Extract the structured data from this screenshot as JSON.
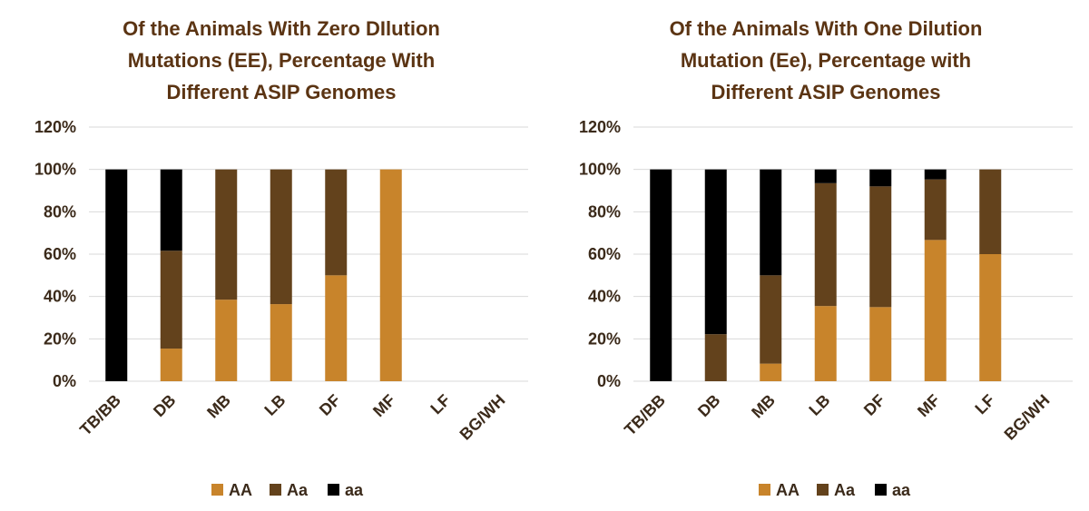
{
  "colors": {
    "AA": "#c8842b",
    "Aa": "#63421c",
    "aa": "#000000",
    "grid": "#d9d9d9",
    "title": "#5b3413",
    "text": "#3b2a1a"
  },
  "chart_data": [
    {
      "type": "bar",
      "stacked": true,
      "title_lines": [
        "Of the Animals With Zero DIlution",
        "Mutations (EE), Percentage With",
        "Different ASIP Genomes"
      ],
      "xlabel": "",
      "ylabel": "",
      "ylim": [
        0,
        120
      ],
      "yticks": [
        "0%",
        "20%",
        "40%",
        "60%",
        "80%",
        "100%",
        "120%"
      ],
      "grid": true,
      "legend_position": "bottom",
      "categories": [
        "TB/BB",
        "DB",
        "MB",
        "LB",
        "DF",
        "MF",
        "LF",
        "BG/WH"
      ],
      "series": [
        {
          "name": "AA",
          "values": [
            0,
            15.4,
            38.5,
            36.4,
            50,
            100,
            0,
            0
          ]
        },
        {
          "name": "Aa",
          "values": [
            0,
            46.2,
            61.5,
            63.6,
            50,
            0,
            0,
            0
          ]
        },
        {
          "name": "aa",
          "values": [
            100,
            38.4,
            0,
            0,
            0,
            0,
            0,
            0
          ]
        }
      ]
    },
    {
      "type": "bar",
      "stacked": true,
      "title_lines": [
        "Of the Animals With One Dilution",
        "Mutation (Ee), Percentage with",
        "Different ASIP Genomes"
      ],
      "xlabel": "",
      "ylabel": "",
      "ylim": [
        0,
        120
      ],
      "yticks": [
        "0%",
        "20%",
        "40%",
        "60%",
        "80%",
        "100%",
        "120%"
      ],
      "grid": true,
      "legend_position": "bottom",
      "categories": [
        "TB/BB",
        "DB",
        "MB",
        "LB",
        "DF",
        "MF",
        "LF",
        "BG/WH"
      ],
      "series": [
        {
          "name": "AA",
          "values": [
            0,
            0,
            8.3,
            35.5,
            35,
            66.7,
            60,
            0
          ]
        },
        {
          "name": "Aa",
          "values": [
            0,
            22.2,
            41.7,
            58,
            57,
            28.6,
            40,
            0
          ]
        },
        {
          "name": "aa",
          "values": [
            100,
            77.8,
            50,
            6.5,
            8,
            4.7,
            0,
            0
          ]
        }
      ]
    }
  ]
}
